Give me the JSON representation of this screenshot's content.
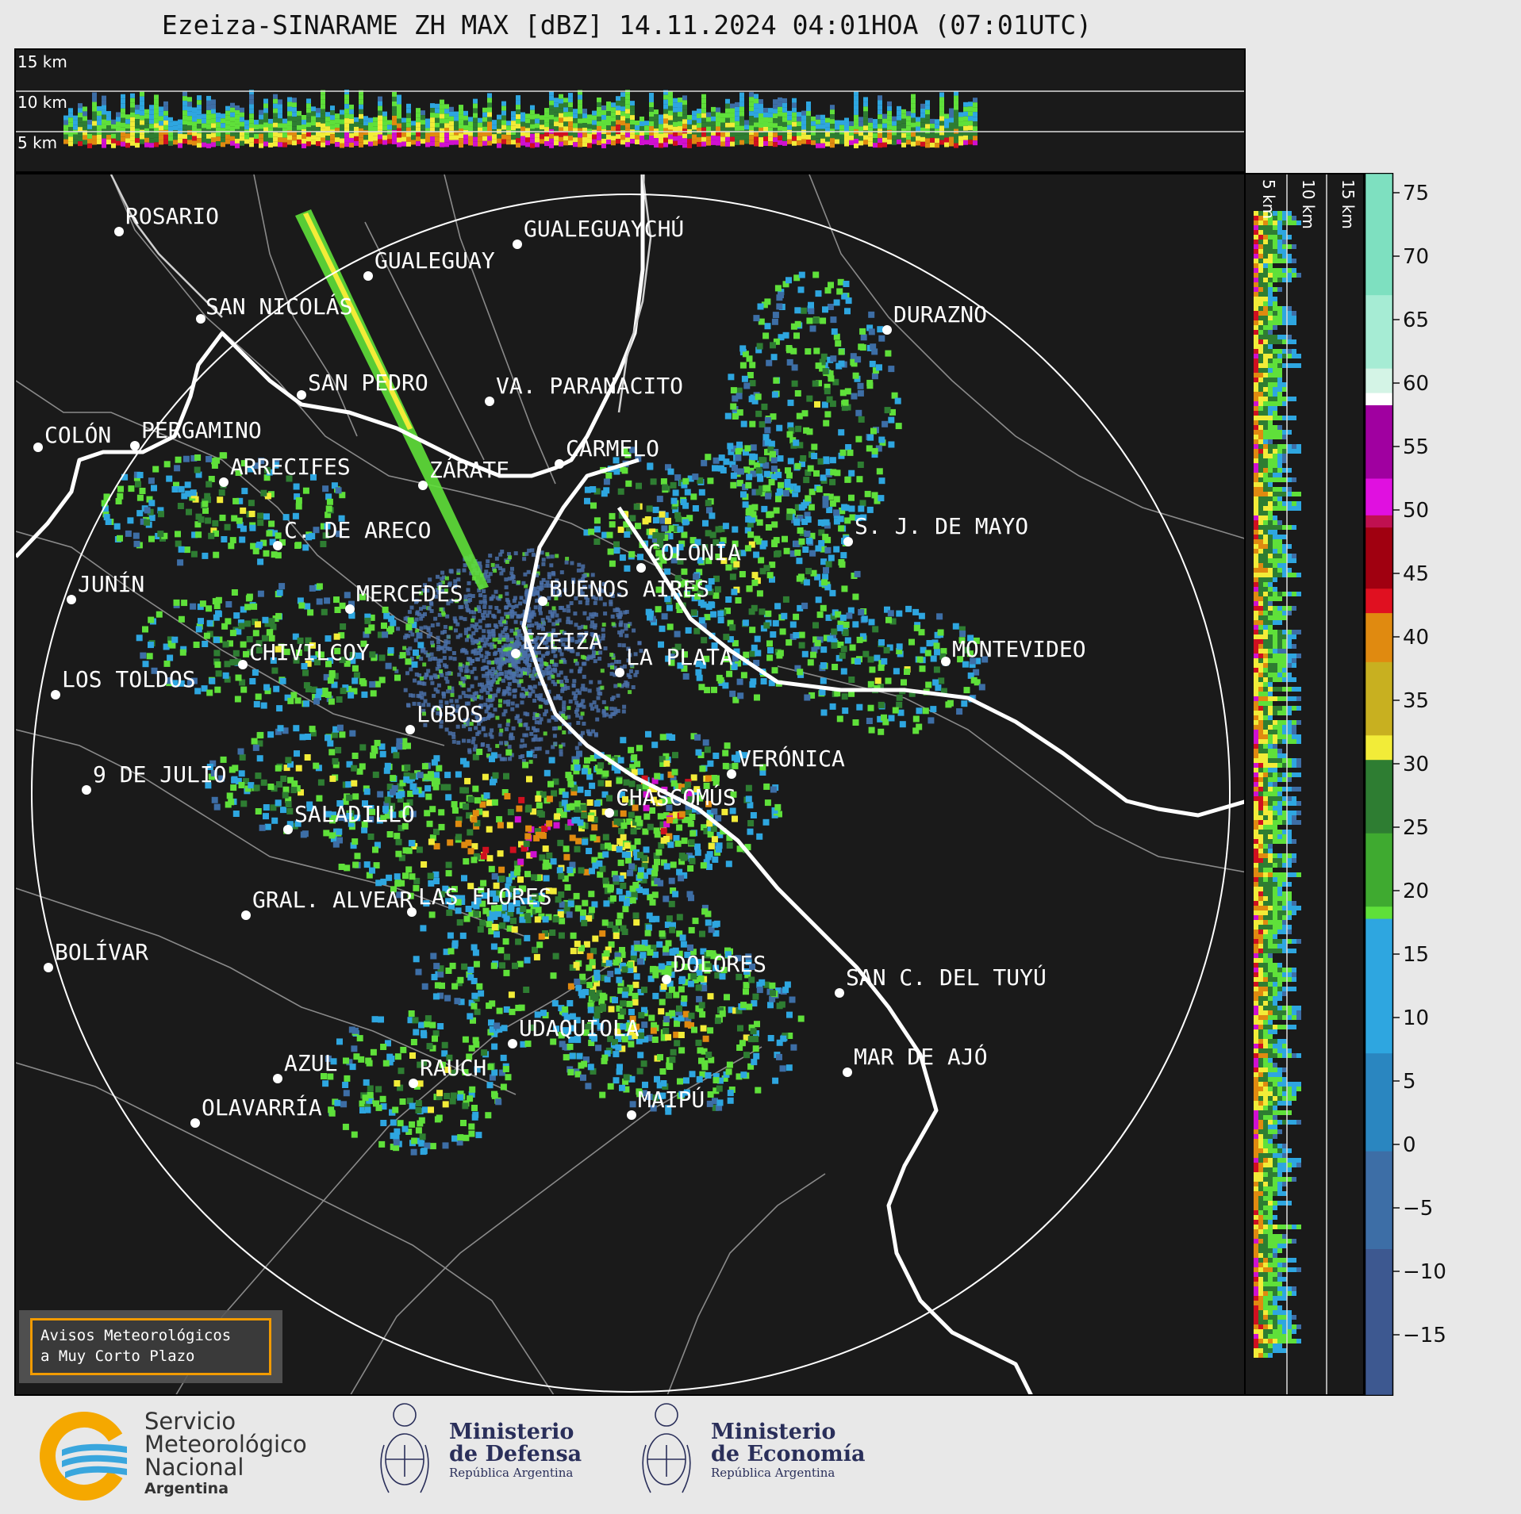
{
  "title": "Ezeiza-SINARAME ZH MAX [dBZ] 14.11.2024 04:01HOA (07:01UTC)",
  "top_profile": {
    "height_labels": [
      "15 km",
      "10 km",
      "5 km"
    ]
  },
  "side_profile": {
    "height_labels": [
      "5 km",
      "10 km",
      "15 km"
    ]
  },
  "colorbar": {
    "unit": "dBZ",
    "ticks": [
      "75",
      "70",
      "65",
      "60",
      "55",
      "50",
      "45",
      "40",
      "35",
      "30",
      "25",
      "20",
      "15",
      "10",
      "5",
      "0",
      "−5",
      "−10",
      "−15"
    ],
    "colors": {
      "very_low": "#3a3f6e",
      "low": "#3d6ea6",
      "blue": "#2ea6e0",
      "green": "#2e7d32",
      "light_green": "#5fe03a",
      "yellow": "#f2ec38",
      "orange": "#e08a10",
      "red": "#d01020",
      "magenta": "#d010d0",
      "white": "#ffffff",
      "teal": "#7ee0c0"
    }
  },
  "cities": [
    {
      "name": "ROSARIO"
    },
    {
      "name": "GUALEGUAYCHÚ"
    },
    {
      "name": "GUALEGUAY"
    },
    {
      "name": "SAN NICOLÁS"
    },
    {
      "name": "DURAZNO"
    },
    {
      "name": "SAN PEDRO"
    },
    {
      "name": "VA. PARANACITO"
    },
    {
      "name": "COLÓN"
    },
    {
      "name": "PERGAMINO"
    },
    {
      "name": "CARMELO"
    },
    {
      "name": "ARRECIFES"
    },
    {
      "name": "ZÁRATE"
    },
    {
      "name": "S. J. DE MAYO"
    },
    {
      "name": "C. DE ARECO"
    },
    {
      "name": "COLONIA"
    },
    {
      "name": "JUNÍN"
    },
    {
      "name": "MERCEDES"
    },
    {
      "name": "BUENOS AIRES"
    },
    {
      "name": "EZEIZA"
    },
    {
      "name": "MONTEVIDEO"
    },
    {
      "name": "CHIVILCOY"
    },
    {
      "name": "LA PLATA"
    },
    {
      "name": "LOS TOLDOS"
    },
    {
      "name": "LOBOS"
    },
    {
      "name": "VERÓNICA"
    },
    {
      "name": "9 DE JULIO"
    },
    {
      "name": "CHASCOMÚS"
    },
    {
      "name": "SALADILLO"
    },
    {
      "name": "GRAL. ALVEAR"
    },
    {
      "name": "LAS FLORES"
    },
    {
      "name": "BOLÍVAR"
    },
    {
      "name": "DOLORES"
    },
    {
      "name": "SAN C. DEL TUYÚ"
    },
    {
      "name": "UDAQUIOLA"
    },
    {
      "name": "AZUL"
    },
    {
      "name": "RAUCH"
    },
    {
      "name": "MAR DE AJÓ"
    },
    {
      "name": "OLAVARRÍA"
    },
    {
      "name": "MAIPÚ"
    }
  ],
  "aviso": {
    "line1": "Avisos Meteorológicos",
    "line2": "a Muy Corto Plazo"
  },
  "footer": {
    "smn": {
      "line1": "Servicio",
      "line2": "Meteorológico",
      "line3": "Nacional",
      "line4": "Argentina",
      "icon": "smn-logo-icon"
    },
    "defensa": {
      "line1": "Ministerio",
      "line2": "de Defensa",
      "sub": "República Argentina",
      "icon": "coat-of-arms-icon"
    },
    "economia": {
      "line1": "Ministerio",
      "line2": "de Economía",
      "sub": "República Argentina",
      "icon": "coat-of-arms-icon"
    }
  }
}
